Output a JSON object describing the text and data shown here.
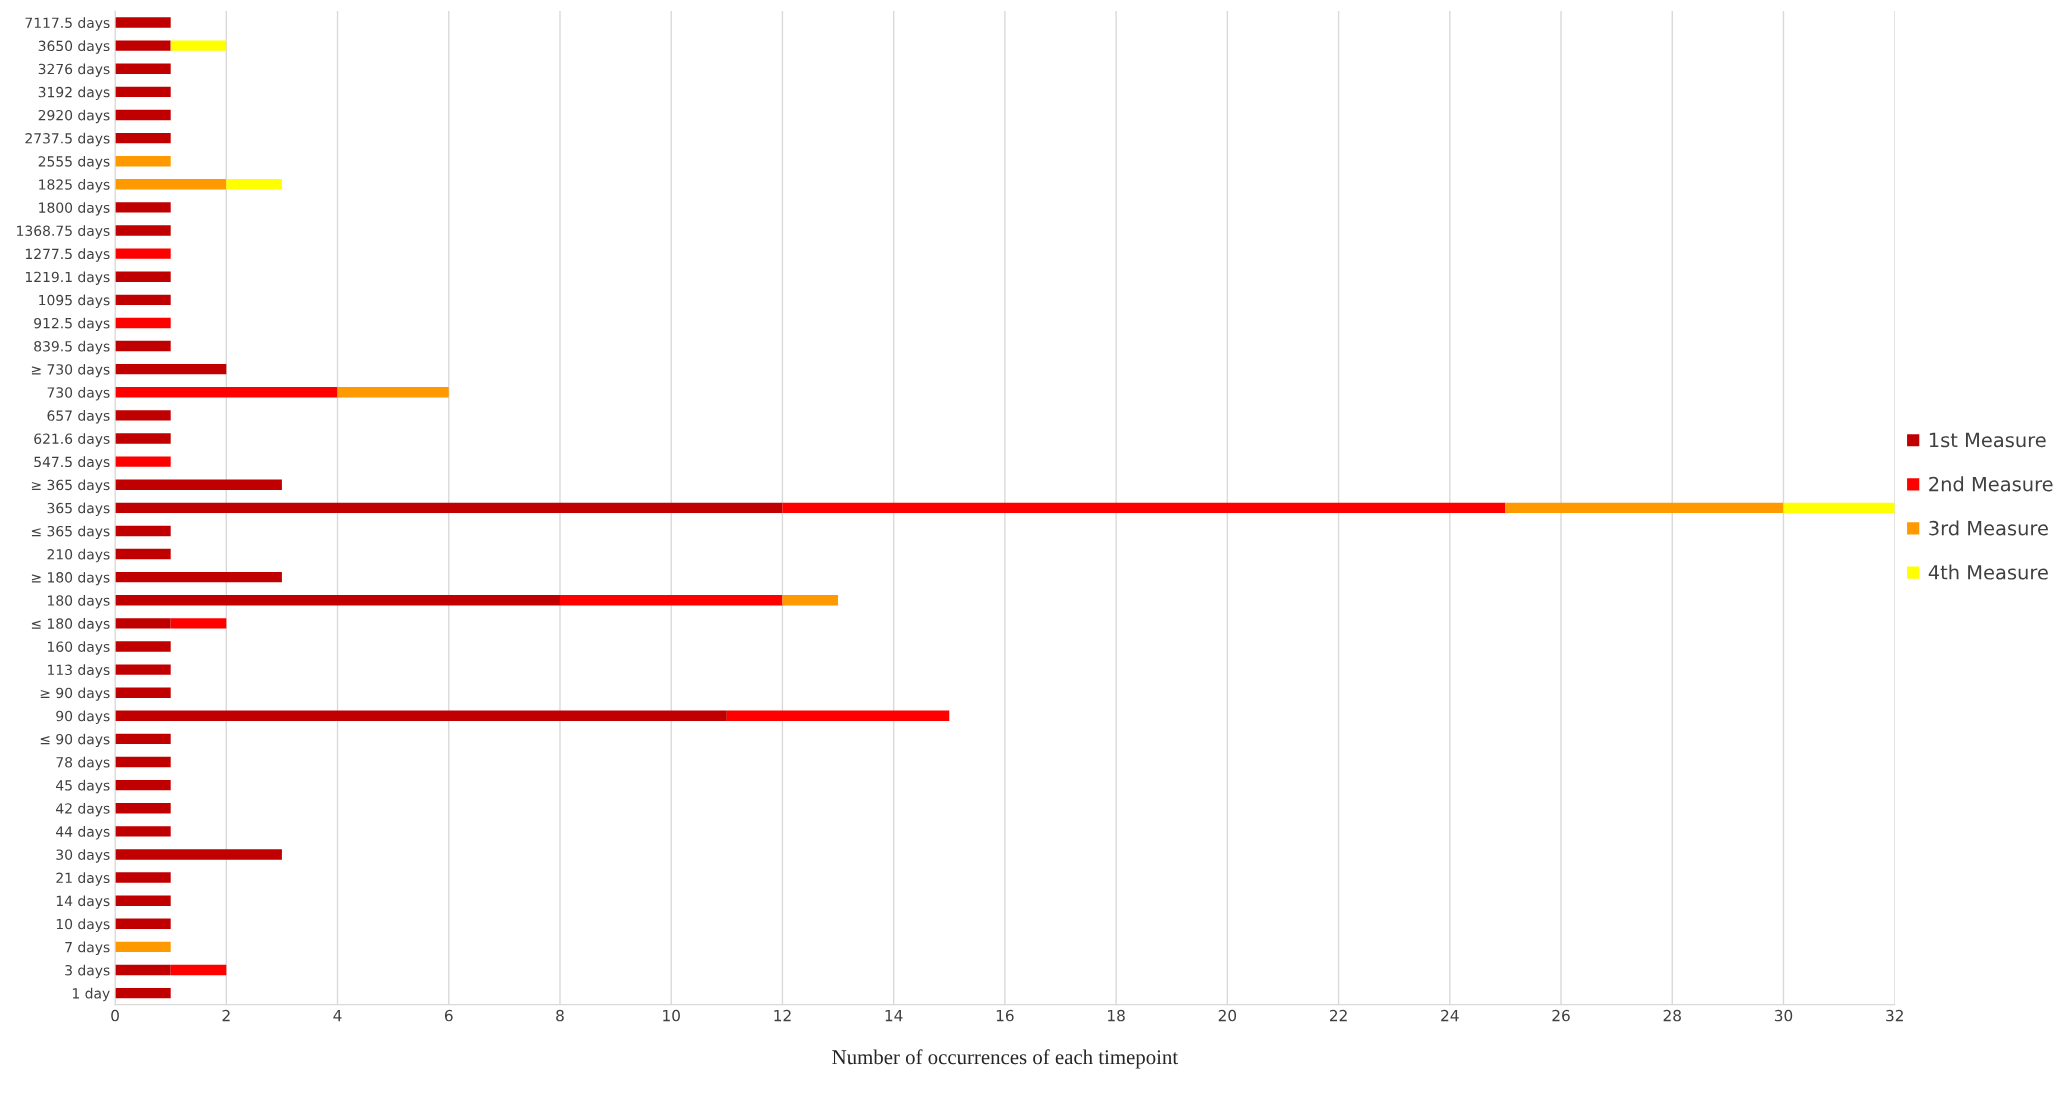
{
  "chart_data": {
    "type": "bar",
    "orientation": "horizontal",
    "stacked": true,
    "xlabel": "Number of occurrences of each timepoint",
    "categories": [
      "7117.5 days",
      "3650 days",
      "3276 days",
      "3192 days",
      "2920 days",
      "2737.5 days",
      "2555 days",
      "1825 days",
      "1800 days",
      "1368.75 days",
      "1277.5 days",
      "1219.1 days",
      "1095 days",
      "912.5 days",
      "839.5 days",
      "≥ 730 days",
      "730 days",
      "657 days",
      "621.6 days",
      "547.5 days",
      "≥ 365 days",
      "365 days",
      "≤ 365 days",
      "210 days",
      "≥ 180 days",
      "180 days",
      "≤ 180 days",
      "160 days",
      "113 days",
      "≥ 90 days",
      "90 days",
      "≤ 90 days",
      "78 days",
      "45 days",
      "42 days",
      "44 days",
      "30 days",
      "21 days",
      "14 days",
      "10 days",
      "7 days",
      "3 days",
      "1 day"
    ],
    "series": [
      {
        "name": "1st Measure",
        "color": "#c00000",
        "values": [
          1,
          1,
          1,
          1,
          1,
          1,
          null,
          null,
          1,
          1,
          null,
          1,
          1,
          null,
          1,
          2,
          null,
          1,
          1,
          null,
          3,
          12,
          1,
          1,
          3,
          8,
          1,
          1,
          1,
          1,
          11,
          1,
          1,
          1,
          1,
          1,
          3,
          1,
          1,
          1,
          null,
          1,
          1
        ]
      },
      {
        "name": "2nd Measure",
        "color": "#ff0000",
        "values": [
          null,
          null,
          null,
          null,
          null,
          null,
          null,
          null,
          null,
          null,
          1,
          null,
          null,
          1,
          null,
          null,
          4,
          null,
          null,
          1,
          null,
          13,
          null,
          null,
          null,
          4,
          1,
          null,
          null,
          null,
          4,
          null,
          null,
          null,
          null,
          null,
          null,
          null,
          null,
          null,
          null,
          1,
          null
        ]
      },
      {
        "name": "3rd Measure",
        "color": "#ff9900",
        "values": [
          null,
          null,
          null,
          null,
          null,
          null,
          1,
          2,
          null,
          null,
          null,
          null,
          null,
          null,
          null,
          null,
          2,
          null,
          null,
          null,
          null,
          5,
          null,
          null,
          null,
          1,
          null,
          null,
          null,
          null,
          null,
          null,
          null,
          null,
          null,
          null,
          null,
          null,
          null,
          null,
          1,
          null,
          null
        ]
      },
      {
        "name": "4th Measure",
        "color": "#ffff00",
        "values": [
          null,
          1,
          null,
          null,
          null,
          null,
          null,
          1,
          null,
          null,
          null,
          null,
          null,
          null,
          null,
          null,
          null,
          null,
          null,
          null,
          null,
          2,
          null,
          null,
          null,
          null,
          null,
          null,
          null,
          null,
          null,
          null,
          null,
          null,
          null,
          null,
          null,
          null,
          null,
          null,
          null,
          null,
          null
        ]
      }
    ],
    "xlim": [
      0,
      32
    ],
    "xticks": [
      0,
      2,
      4,
      6,
      8,
      10,
      12,
      14,
      16,
      18,
      20,
      22,
      24,
      26,
      28,
      30,
      32
    ],
    "grid": "x",
    "legend": "right"
  }
}
